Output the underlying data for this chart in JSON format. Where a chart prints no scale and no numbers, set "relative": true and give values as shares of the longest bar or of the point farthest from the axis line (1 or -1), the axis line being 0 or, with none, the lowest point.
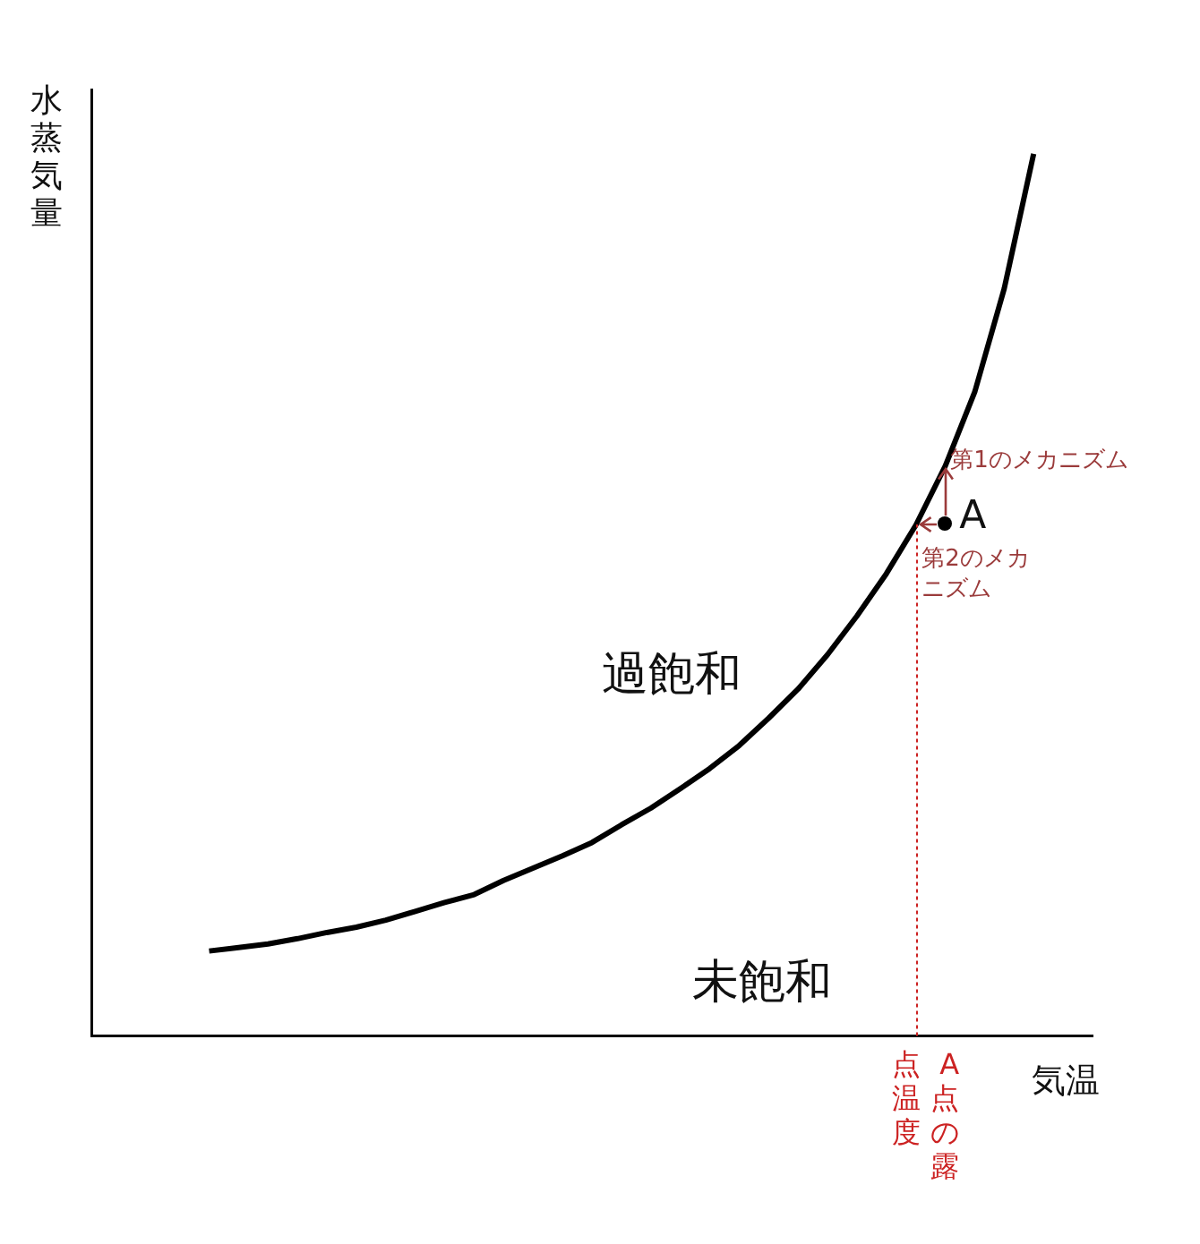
{
  "chart_data": {
    "type": "line",
    "relative": true,
    "xlabel": "気温",
    "ylabel": "水蒸気量",
    "categories": [
      null,
      null,
      null,
      null,
      null,
      null,
      null,
      null,
      null,
      null,
      null,
      null,
      null,
      null,
      null,
      null,
      null,
      null,
      null,
      null,
      null,
      null,
      null,
      null,
      null,
      null,
      null,
      null,
      null,
      null,
      null,
      null,
      null,
      null,
      null
    ],
    "series": [
      {
        "color": "#000000",
        "values": [
          null,
          null,
          null,
          null,
          0.096,
          0.1,
          0.104,
          0.11,
          0.117,
          0.123,
          0.131,
          0.141,
          0.151,
          0.16,
          0.176,
          0.19,
          0.204,
          0.219,
          0.239,
          0.258,
          0.28,
          0.303,
          0.329,
          0.36,
          0.393,
          0.432,
          0.476,
          0.524,
          0.579,
          0.646,
          0.73,
          0.847,
          1,
          null,
          null
        ]
      }
    ],
    "annotations": [
      "過飽和",
      "未飽和",
      "第1のメカニズム",
      "第2のメカニズム",
      "A点の露点温度",
      "A"
    ],
    "marker": "none",
    "grid": false
  }
}
